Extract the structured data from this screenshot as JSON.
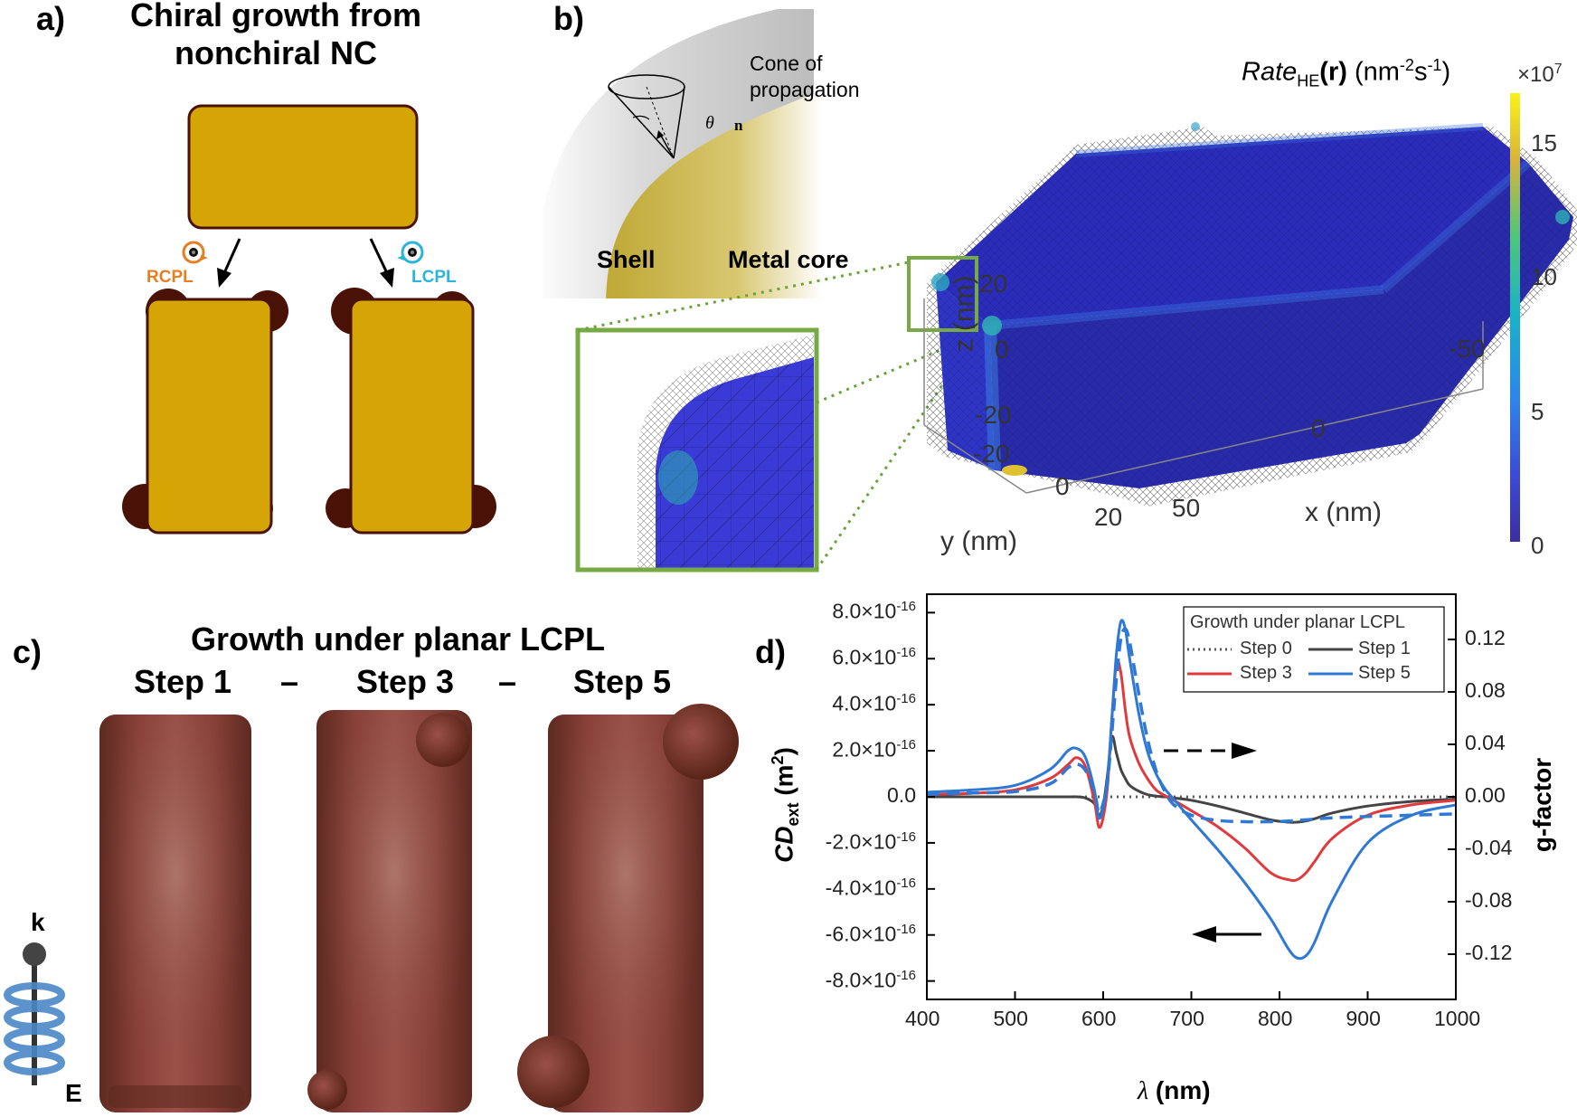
{
  "panel_a": {
    "label": "a)",
    "title_line1": "Chiral growth from",
    "title_line2": "nonchiral NC",
    "rcpl": "RCPL",
    "lcpl": "LCPL",
    "colors": {
      "gold": "#D4A504",
      "tip": "#4A1206",
      "rcpl": "#E67E22",
      "lcpl": "#2BB5D9"
    }
  },
  "panel_b": {
    "label": "b)",
    "cone_text_1": "Cone of",
    "cone_text_2": "propagation",
    "theta": "θ",
    "n_vec": "n",
    "shell": "Shell",
    "core": "Metal core",
    "colorbar_title_italic": "Rate",
    "colorbar_title_sub": "HE",
    "colorbar_title_rest": "(r) (nm",
    "colorbar_exp": "-2",
    "colorbar_unit": "s",
    "colorbar_exp2": "-1",
    "colorbar_close": ")",
    "colorbar_scale": "×10",
    "colorbar_scale_exp": "7",
    "colorbar_ticks": [
      "15",
      "10",
      "5",
      "0"
    ],
    "z_axis_label": "z (nm)",
    "z_ticks": [
      "20",
      "0",
      "-20"
    ],
    "y_axis_label": "y (nm)",
    "y_ticks": [
      "-20",
      "0",
      "20"
    ],
    "x_axis_label": "x (nm)",
    "x_ticks": [
      "50",
      "0",
      "-50"
    ]
  },
  "panel_c": {
    "label": "c)",
    "title": "Growth under planar LCPL",
    "steps": [
      "Step 1",
      "–",
      "Step 3",
      "–",
      "Step 5"
    ],
    "k_label": "k",
    "e_label": "E"
  },
  "panel_d": {
    "label": "d)",
    "legend_title": "Growth under planar LCPL",
    "legend": [
      "Step 0",
      "Step 1",
      "Step 3",
      "Step 5"
    ]
  },
  "chart_data": {
    "type": "line",
    "xlabel": "λ (nm)",
    "ylabel": "CD_ext (m^2)",
    "y2label": "g-factor",
    "xlim": [
      400,
      1000
    ],
    "ylim": [
      -8.8e-16,
      8.8e-16
    ],
    "y2lim": [
      -0.1545,
      0.1545
    ],
    "x_ticks": [
      "400",
      "500",
      "600",
      "700",
      "800",
      "900",
      "1000"
    ],
    "y_ticks": [
      {
        "mant": "8.0×10",
        "exp": "-16",
        "v": 8e-16
      },
      {
        "mant": "6.0×10",
        "exp": "-16",
        "v": 6e-16
      },
      {
        "mant": "4.0×10",
        "exp": "-16",
        "v": 4e-16
      },
      {
        "mant": "2.0×10",
        "exp": "-16",
        "v": 2e-16
      },
      {
        "mant": "0.0",
        "exp": "",
        "v": 0
      },
      {
        "mant": "-2.0×10",
        "exp": "-16",
        "v": -2e-16
      },
      {
        "mant": "-4.0×10",
        "exp": "-16",
        "v": -4e-16
      },
      {
        "mant": "-6.0×10",
        "exp": "-16",
        "v": -6e-16
      },
      {
        "mant": "-8.0×10",
        "exp": "-16",
        "v": -8e-16
      }
    ],
    "y2_ticks": [
      "0.12",
      "0.08",
      "0.04",
      "0.00",
      "-0.04",
      "-0.08",
      "-0.12"
    ],
    "y2_tick_values": [
      0.12,
      0.08,
      0.04,
      0.0,
      -0.04,
      -0.08,
      -0.12
    ],
    "x": [
      400,
      450,
      500,
      540,
      560,
      570,
      580,
      590,
      595,
      600,
      605,
      610,
      615,
      620,
      625,
      630,
      640,
      650,
      660,
      670,
      680,
      700,
      730,
      760,
      790,
      810,
      820,
      830,
      840,
      860,
      900,
      950,
      1000
    ],
    "series": [
      {
        "name": "Step 0",
        "color": "#555555",
        "dash": "dotted",
        "values": [
          0,
          0,
          0,
          0,
          0,
          0,
          0,
          0,
          0,
          0,
          0,
          0,
          0,
          0,
          0,
          0,
          0,
          0,
          0,
          0,
          0,
          0,
          0,
          0,
          0,
          0,
          0,
          0,
          0,
          0,
          0,
          0,
          0
        ]
      },
      {
        "name": "Step 1",
        "color": "#444444",
        "dash": "solid",
        "values": [
          0,
          0,
          0,
          0,
          0,
          0,
          -5e-18,
          -3e-17,
          -8e-17,
          -4e-17,
          1e-16,
          2.6e-16,
          1.9e-16,
          1.2e-16,
          8e-17,
          5e-17,
          2.5e-17,
          1e-17,
          3e-18,
          0,
          -5e-18,
          -1.5e-17,
          -4e-17,
          -7e-17,
          -1e-16,
          -1.1e-16,
          -1.1e-16,
          -1.05e-16,
          -9.5e-17,
          -7e-17,
          -4e-17,
          -2e-17,
          -1e-17
        ]
      },
      {
        "name": "Step 3",
        "color": "#E03A3E",
        "dash": "solid",
        "values": [
          1e-17,
          1.5e-17,
          3e-17,
          8e-17,
          1.4e-16,
          1.7e-16,
          1.3e-16,
          -2e-17,
          -1.3e-16,
          -9e-17,
          5e-17,
          3.5e-16,
          5.8e-16,
          5.4e-16,
          3.8e-16,
          2.6e-16,
          1.5e-16,
          8e-17,
          3e-17,
          5e-18,
          -1.5e-17,
          -6e-17,
          -1.3e-16,
          -2.2e-16,
          -3.3e-16,
          -3.6e-16,
          -3.6e-16,
          -3.3e-16,
          -2.8e-16,
          -1.8e-16,
          -8e-17,
          -3.5e-17,
          -1.5e-17
        ]
      },
      {
        "name": "Step 5",
        "color": "#2F78D4",
        "dash": "solid",
        "values": [
          2e-17,
          3e-17,
          5e-17,
          1.2e-16,
          2e-16,
          2.1e-16,
          1.7e-16,
          3e-17,
          -9e-17,
          -5e-17,
          8e-17,
          3.5e-16,
          6.2e-16,
          7.6e-16,
          7.3e-16,
          6e-16,
          3.7e-16,
          2e-16,
          1e-16,
          3.5e-17,
          -1e-17,
          -1e-16,
          -2.3e-16,
          -3.7e-16,
          -5.3e-16,
          -6.6e-16,
          -7e-16,
          -6.9e-16,
          -6.3e-16,
          -4.5e-16,
          -2e-16,
          -8e-17,
          -3.5e-17
        ]
      },
      {
        "name": "g-factor (Step 5)",
        "color": "#2F78D4",
        "dash": "dashed",
        "axis": "y2",
        "values": [
          0.002,
          0.003,
          0.004,
          0.01,
          0.022,
          0.025,
          0.02,
          0.004,
          -0.012,
          -0.005,
          0.012,
          0.05,
          0.09,
          0.12,
          0.128,
          0.118,
          0.08,
          0.045,
          0.02,
          0.004,
          -0.006,
          -0.014,
          -0.018,
          -0.019,
          -0.019,
          -0.0185,
          -0.018,
          -0.0175,
          -0.017,
          -0.016,
          -0.015,
          -0.014,
          -0.013
        ]
      }
    ]
  }
}
